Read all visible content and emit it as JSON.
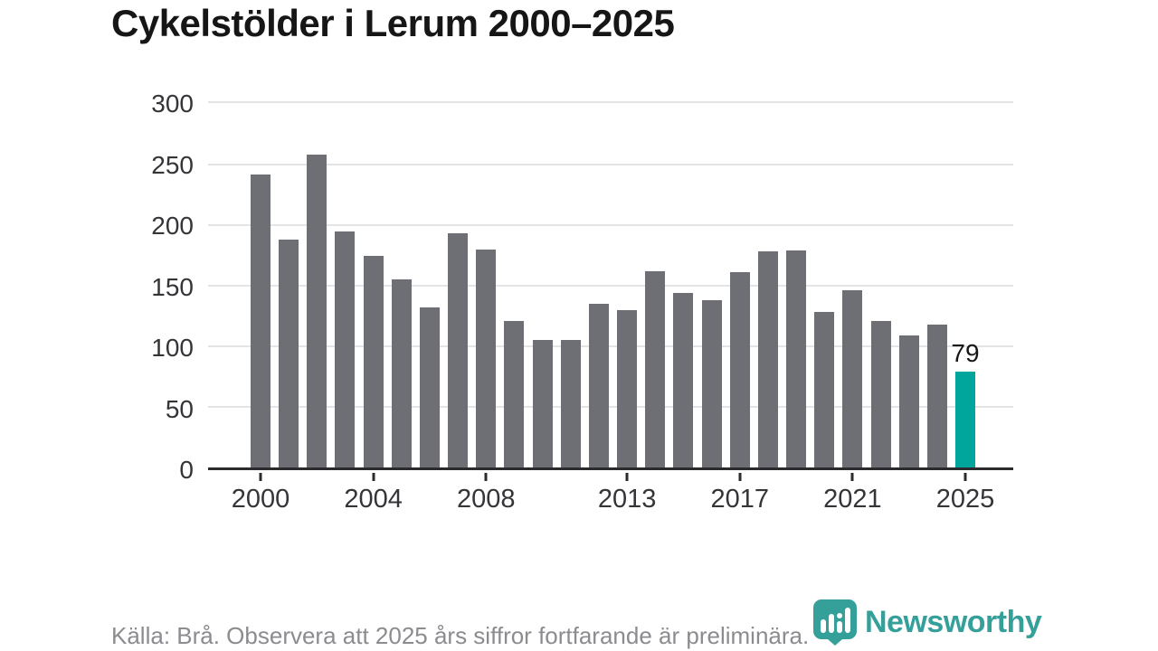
{
  "title": "Cykelstölder i Lerum 2000–2025",
  "footer": {
    "source_note": "Källa: Brå. Observera att 2025 års siffror fortfarande är preliminära.",
    "brand": "Newsworthy"
  },
  "colors": {
    "bar": "#6e6e75",
    "highlight": "#00a69b",
    "logo": "#35a09a",
    "grid": "#e4e4e6",
    "axis": "#2b2b2e",
    "text-dark": "#161617",
    "text-tick": "#353539",
    "text-muted": "#8b8b90"
  },
  "chart_data": {
    "type": "bar",
    "title": "Cykelstölder i Lerum 2000–2025",
    "x": [
      2000,
      2001,
      2002,
      2003,
      2004,
      2005,
      2006,
      2007,
      2008,
      2009,
      2010,
      2011,
      2012,
      2013,
      2014,
      2015,
      2016,
      2017,
      2018,
      2019,
      2020,
      2021,
      2022,
      2023,
      2024,
      2025
    ],
    "values": [
      242,
      188,
      258,
      195,
      175,
      155,
      132,
      193,
      180,
      121,
      105,
      105,
      135,
      130,
      162,
      144,
      138,
      161,
      178,
      179,
      128,
      146,
      121,
      109,
      118,
      79
    ],
    "highlight_index": 25,
    "annotation": {
      "index": 25,
      "text": "79"
    },
    "xlabel": "",
    "ylabel": "",
    "ylim": [
      0,
      300
    ],
    "yticks": [
      0,
      50,
      100,
      150,
      200,
      250,
      300
    ],
    "xticks": [
      2000,
      2004,
      2008,
      2013,
      2017,
      2021,
      2025
    ],
    "grid": "horizontal",
    "legend": "none",
    "bar_color": "#6e6e75",
    "highlight_color": "#00a69b"
  }
}
